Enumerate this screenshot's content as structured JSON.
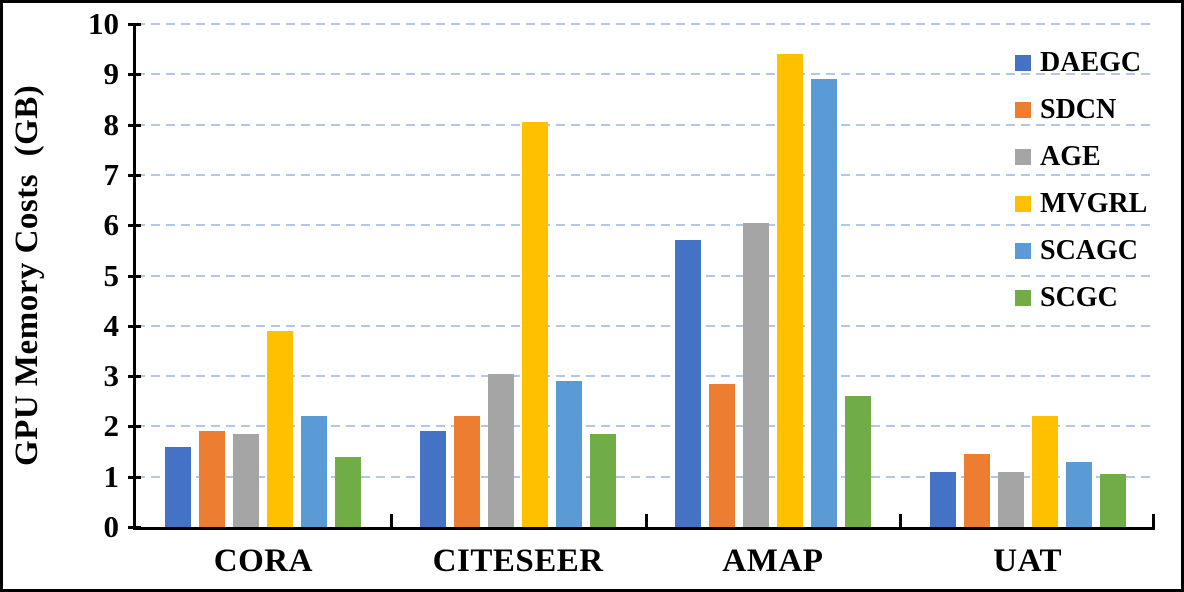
{
  "figure": {
    "background_color": "#ffffff",
    "frame_color": "#000000",
    "axis_color": "#000000",
    "gridline_color": "#b4c7e7"
  },
  "chart_data": {
    "type": "bar",
    "title": "",
    "xlabel": "",
    "ylabel": "GPU Memory Costs  (GB)",
    "ylim": [
      0,
      10
    ],
    "yticks": [
      0,
      1,
      2,
      3,
      4,
      5,
      6,
      7,
      8,
      9,
      10
    ],
    "grid": "horizontal dashed",
    "legend_position": "top-right",
    "categories": [
      "CORA",
      "CITESEER",
      "AMAP",
      "UAT"
    ],
    "series": [
      {
        "name": "DAEGC",
        "color": "#4472C4",
        "values": [
          1.6,
          1.9,
          5.7,
          1.1
        ]
      },
      {
        "name": "SDCN",
        "color": "#ED7D31",
        "values": [
          1.9,
          2.2,
          2.85,
          1.45
        ]
      },
      {
        "name": "AGE",
        "color": "#A5A5A5",
        "values": [
          1.85,
          3.05,
          6.05,
          1.1
        ]
      },
      {
        "name": "MVGRL",
        "color": "#FFC000",
        "values": [
          3.9,
          8.05,
          9.4,
          2.2
        ]
      },
      {
        "name": "SCAGC",
        "color": "#5B9BD5",
        "values": [
          2.2,
          2.9,
          8.9,
          1.3
        ]
      },
      {
        "name": "SCGC",
        "color": "#70AD47",
        "values": [
          1.4,
          1.85,
          2.6,
          1.05
        ]
      }
    ]
  }
}
